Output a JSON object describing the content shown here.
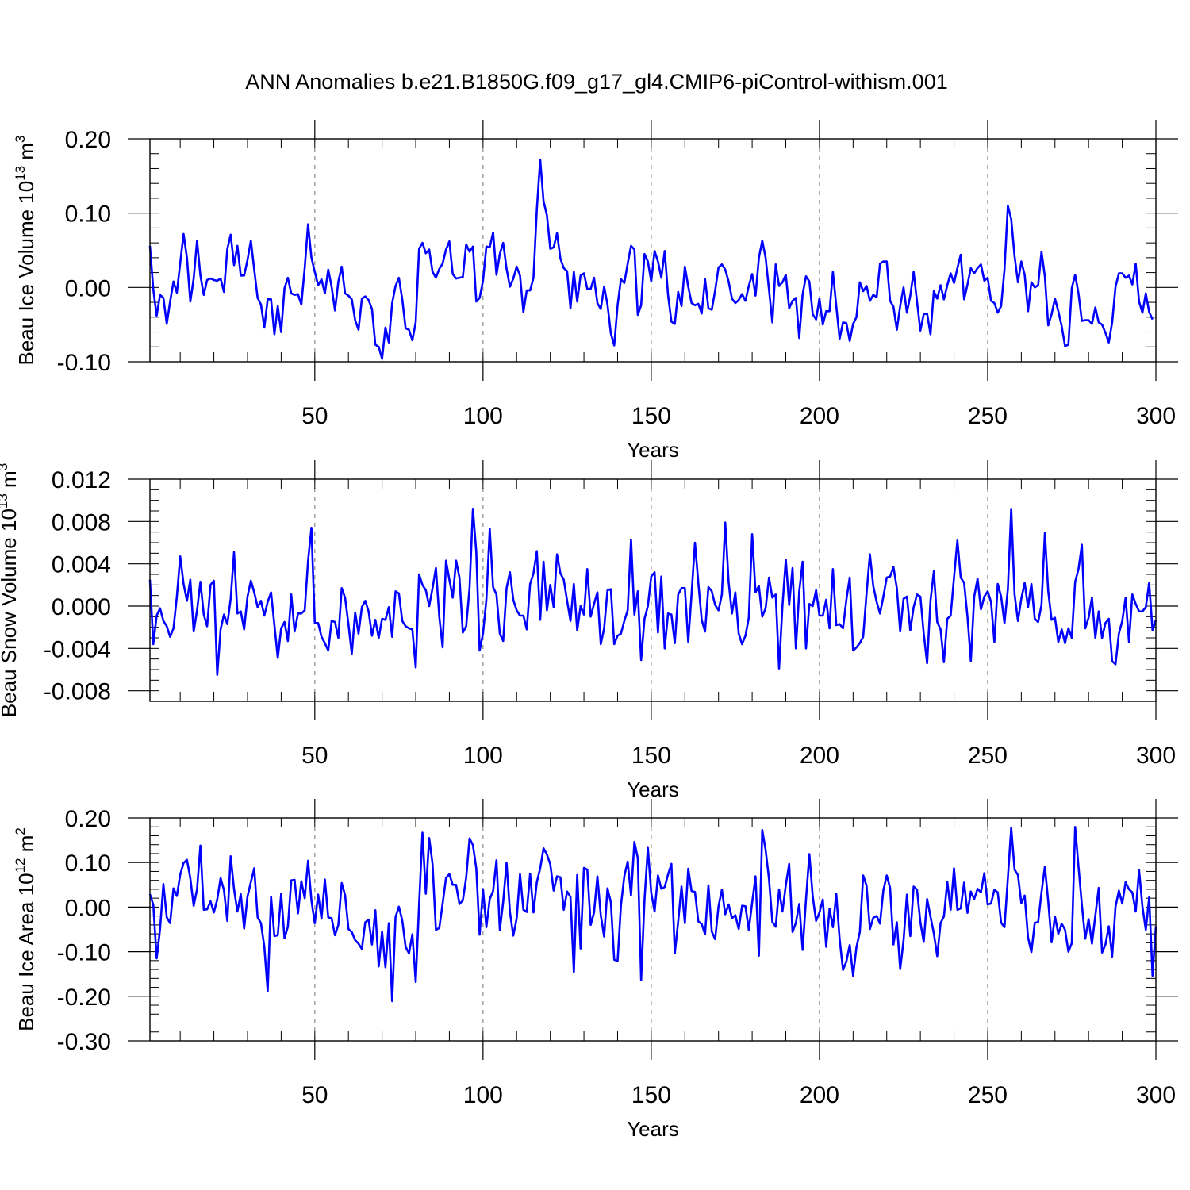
{
  "title": "ANN Anomalies b.e21.B1850G.f09_g17_gl4.CMIP6-piControl-withism.001",
  "chart_data": [
    {
      "type": "line",
      "ylabel": "Beau Ice Volume 10",
      "ylabel_sup": "13",
      "ylabel_unit": " m",
      "ylabel_unit_sup": "3",
      "xlabel": "Years",
      "xlim": [
        1,
        300
      ],
      "ylim": [
        -0.1,
        0.2
      ],
      "y_ticks": [
        -0.1,
        0.0,
        0.1,
        0.2
      ],
      "y_tick_labels": [
        "-0.10",
        "0.00",
        "0.10",
        "0.20"
      ],
      "y_minor_step": 0.02,
      "grid": "dashed vertical lines at x = 50, 100, 150, 200, 250",
      "color": "#0000ff",
      "values": [
        0.056,
        -0.003,
        -0.038,
        -0.01,
        -0.014,
        -0.049,
        -0.019,
        0.008,
        -0.007,
        0.033,
        0.072,
        0.04,
        -0.019,
        0.012,
        0.063,
        0.016,
        -0.01,
        0.01,
        0.012,
        0.01,
        0.009,
        0.012,
        -0.006,
        0.052,
        0.071,
        0.03,
        0.056,
        0.016,
        0.016,
        0.037,
        0.063,
        0.024,
        -0.014,
        -0.023,
        -0.054,
        -0.016,
        -0.016,
        -0.063,
        -0.025,
        -0.06,
        -0.001,
        0.013,
        -0.008,
        -0.01,
        -0.009,
        -0.023,
        0.026,
        0.085,
        0.04,
        0.021,
        0.003,
        0.011,
        -0.008,
        0.024,
        0.001,
        -0.031,
        0.008,
        0.028,
        -0.008,
        -0.011,
        -0.016,
        -0.044,
        -0.057,
        -0.015,
        -0.012,
        -0.017,
        -0.029,
        -0.077,
        -0.08,
        -0.096,
        -0.054,
        -0.074,
        -0.021,
        0.002,
        0.013,
        -0.016,
        -0.055,
        -0.057,
        -0.071,
        -0.047,
        0.052,
        0.06,
        0.046,
        0.051,
        0.021,
        0.013,
        0.025,
        0.032,
        0.051,
        0.062,
        0.018,
        0.012,
        0.013,
        0.014,
        0.058,
        0.048,
        0.055,
        -0.019,
        -0.014,
        0.009,
        0.055,
        0.054,
        0.074,
        0.017,
        0.045,
        0.06,
        0.025,
        0.001,
        0.012,
        0.028,
        0.016,
        -0.033,
        -0.004,
        -0.004,
        0.013,
        0.105,
        0.172,
        0.116,
        0.097,
        0.052,
        0.054,
        0.073,
        0.039,
        0.026,
        0.022,
        -0.028,
        0.021,
        -0.019,
        0.016,
        0.019,
        -0.002,
        -0.002,
        0.013,
        -0.021,
        -0.029,
        0.001,
        -0.023,
        -0.062,
        -0.078,
        -0.024,
        0.011,
        0.006,
        0.032,
        0.056,
        0.051,
        -0.037,
        -0.024,
        0.045,
        0.035,
        0.008,
        0.049,
        0.035,
        0.013,
        0.049,
        -0.01,
        -0.046,
        -0.049,
        -0.006,
        -0.025,
        0.028,
        0.001,
        -0.021,
        -0.024,
        -0.022,
        -0.035,
        0.011,
        -0.028,
        -0.03,
        -0.004,
        0.027,
        0.031,
        0.024,
        0.008,
        -0.015,
        -0.021,
        -0.017,
        -0.009,
        -0.018,
        0.002,
        0.018,
        -0.011,
        0.04,
        0.063,
        0.04,
        -0.003,
        -0.047,
        0.031,
        0.002,
        0.007,
        0.017,
        -0.028,
        -0.018,
        -0.014,
        -0.068,
        -0.009,
        0.015,
        0.008,
        -0.036,
        -0.043,
        -0.015,
        -0.05,
        -0.032,
        -0.032,
        0.021,
        -0.025,
        -0.069,
        -0.047,
        -0.048,
        -0.072,
        -0.049,
        -0.04,
        0.007,
        -0.005,
        0.002,
        -0.018,
        -0.01,
        -0.013,
        0.032,
        0.035,
        0.035,
        -0.018,
        -0.026,
        -0.057,
        -0.025,
        0.0,
        -0.034,
        -0.011,
        0.021,
        -0.019,
        -0.058,
        -0.036,
        -0.035,
        -0.063,
        -0.005,
        -0.015,
        0.003,
        -0.016,
        0.003,
        0.019,
        0.006,
        0.026,
        0.044,
        -0.016,
        0.004,
        0.026,
        0.019,
        0.026,
        0.031,
        0.009,
        0.013,
        -0.018,
        -0.021,
        -0.034,
        -0.025,
        0.024,
        0.11,
        0.092,
        0.042,
        0.007,
        0.035,
        0.017,
        -0.032,
        0.007,
        0.0,
        0.003,
        0.048,
        0.015,
        -0.051,
        -0.036,
        -0.015,
        -0.032,
        -0.052,
        -0.079,
        -0.077,
        -0.001,
        0.017,
        -0.008,
        -0.045,
        -0.044,
        -0.044,
        -0.049,
        -0.027,
        -0.047,
        -0.05,
        -0.061,
        -0.074,
        -0.047,
        0.001,
        0.019,
        0.019,
        0.013,
        0.016,
        0.004,
        0.032,
        -0.019,
        -0.034,
        -0.008,
        -0.033,
        -0.043
      ]
    },
    {
      "type": "line",
      "ylabel": "Beau Snow Volume 10",
      "ylabel_sup": "13",
      "ylabel_unit": " m",
      "ylabel_unit_sup": "3",
      "xlabel": "Years",
      "xlim": [
        1,
        300
      ],
      "ylim": [
        -0.009,
        0.012
      ],
      "y_ticks": [
        -0.008,
        -0.004,
        0.0,
        0.004,
        0.008,
        0.012
      ],
      "y_tick_labels": [
        "-0.008",
        "-0.004",
        "0.000",
        "0.004",
        "0.008",
        "0.012"
      ],
      "y_minor_step": 0.001,
      "grid": "dashed vertical lines at x = 50, 100, 150, 200, 250",
      "color": "#0000ff",
      "values": [
        0.0025,
        -0.0036,
        -0.0009,
        -0.0002,
        -0.0014,
        -0.0019,
        -0.0029,
        -0.0021,
        0.0009,
        0.0047,
        0.0021,
        0.0005,
        0.0025,
        -0.0024,
        -0.0004,
        0.0023,
        -0.0008,
        -0.0019,
        0.002,
        0.0024,
        -0.0065,
        -0.0022,
        -0.0008,
        -0.0017,
        0.0007,
        0.0051,
        -0.0007,
        -0.0005,
        -0.0022,
        0.0009,
        0.0024,
        0.0013,
        -0.0001,
        0.0005,
        -0.0009,
        0.0004,
        0.0013,
        -0.0018,
        -0.0049,
        -0.0021,
        -0.0015,
        -0.0033,
        0.0011,
        -0.0024,
        -0.0007,
        -0.0007,
        -0.0004,
        0.0043,
        0.0074,
        -0.0016,
        -0.0016,
        -0.0029,
        -0.0035,
        -0.0042,
        -0.0014,
        -0.0015,
        -0.003,
        0.0017,
        0.0008,
        -0.0017,
        -0.0045,
        -0.0006,
        -0.0026,
        -0.0001,
        0.0005,
        -0.0005,
        -0.0028,
        -0.0013,
        -0.003,
        -0.0012,
        -0.0013,
        -0.0001,
        -0.0029,
        0.0014,
        0.0012,
        -0.0014,
        -0.0019,
        -0.0021,
        -0.0022,
        -0.0058,
        0.003,
        0.002,
        0.0015,
        0.0,
        0.0017,
        0.0036,
        -0.001,
        -0.0039,
        0.0043,
        0.0025,
        0.0008,
        0.0043,
        0.0027,
        -0.0025,
        -0.0019,
        0.0017,
        0.0092,
        0.0051,
        -0.0042,
        -0.0026,
        0.0006,
        0.0073,
        0.0018,
        0.0011,
        -0.0026,
        -0.0033,
        0.0017,
        0.0032,
        0.0006,
        -0.0004,
        -0.0009,
        -0.0009,
        -0.0022,
        0.0021,
        0.0031,
        0.0052,
        -0.0013,
        0.0042,
        -0.0004,
        0.002,
        -0.0001,
        0.0049,
        0.0031,
        0.0025,
        0.0005,
        -0.0014,
        0.0021,
        -0.0023,
        0.0,
        -0.0008,
        0.0035,
        -0.001,
        0.0002,
        0.0013,
        -0.0036,
        -0.0021,
        0.0015,
        0.0016,
        -0.0036,
        -0.0028,
        -0.0026,
        -0.0014,
        -0.0004,
        0.0063,
        -0.0008,
        0.0014,
        -0.0051,
        -0.0012,
        0.0,
        0.0028,
        0.0032,
        -0.0025,
        0.0028,
        -0.004,
        -0.0007,
        -0.0008,
        -0.0035,
        0.0011,
        0.0017,
        0.0017,
        -0.0034,
        0.0012,
        0.006,
        0.0022,
        -0.0013,
        -0.0024,
        0.0018,
        0.0014,
        0.0001,
        -0.0004,
        0.0011,
        0.0079,
        0.0023,
        -0.0007,
        0.0013,
        -0.0026,
        -0.0036,
        -0.0028,
        -0.0011,
        0.0068,
        0.0013,
        0.0019,
        -0.001,
        -0.0002,
        0.0027,
        0.0008,
        0.0011,
        -0.0059,
        0.0,
        0.0044,
        0.0001,
        0.0036,
        -0.004,
        0.0014,
        0.0042,
        -0.004,
        0.0002,
        0.0,
        0.0015,
        -0.0009,
        -0.0009,
        0.0006,
        -0.0021,
        0.0035,
        -0.0018,
        -0.0017,
        -0.0021,
        0.0006,
        0.0027,
        -0.0042,
        -0.0039,
        -0.0035,
        -0.0029,
        0.0012,
        0.0049,
        0.0019,
        0.0004,
        -0.0007,
        0.0009,
        0.0027,
        0.0028,
        0.0037,
        0.0017,
        -0.0024,
        0.0007,
        0.0009,
        -0.0023,
        -0.0001,
        0.0011,
        0.0009,
        -0.0026,
        -0.0054,
        0.0005,
        0.0033,
        -0.0015,
        -0.0022,
        -0.0053,
        -0.0012,
        -0.0009,
        0.0027,
        0.0062,
        0.0027,
        0.0022,
        -0.001,
        -0.0052,
        0.0009,
        0.0026,
        -0.0003,
        0.0009,
        0.0014,
        0.0004,
        -0.0034,
        0.0021,
        0.0009,
        -0.0016,
        0.0016,
        0.0092,
        0.0011,
        -0.0014,
        0.0007,
        0.0022,
        -0.0001,
        0.0021,
        -0.0012,
        -0.0015,
        0.0001,
        0.0069,
        0.0014,
        -0.0013,
        -0.0011,
        -0.0034,
        -0.0022,
        -0.0035,
        -0.0021,
        -0.003,
        0.0023,
        0.0035,
        0.0058,
        -0.0021,
        -0.0011,
        0.0008,
        -0.003,
        -0.0005,
        -0.003,
        -0.0016,
        -0.0012,
        -0.0052,
        -0.0055,
        -0.0026,
        -0.0014,
        0.0008,
        -0.0034,
        0.0011,
        0.0002,
        -0.0005,
        -0.0005,
        -0.0001,
        0.0022,
        -0.0023,
        -0.0013
      ]
    },
    {
      "type": "line",
      "ylabel": "Beau Ice Area 10",
      "ylabel_sup": "12",
      "ylabel_unit": " m",
      "ylabel_unit_sup": "2",
      "xlabel": "Years",
      "xlim": [
        1,
        300
      ],
      "ylim": [
        -0.3,
        0.2
      ],
      "y_ticks": [
        -0.3,
        -0.2,
        -0.1,
        0.0,
        0.1,
        0.2
      ],
      "y_tick_labels": [
        "-0.30",
        "-0.20",
        "-0.10",
        "0.00",
        "0.10",
        "0.20"
      ],
      "y_minor_step": 0.02,
      "grid": "dashed vertical lines at x = 50, 100, 150, 200, 250",
      "color": "#0000ff",
      "values": [
        0.029,
        0.005,
        -0.115,
        -0.05,
        0.052,
        -0.023,
        -0.036,
        0.042,
        0.025,
        0.073,
        0.099,
        0.106,
        0.065,
        0.003,
        0.04,
        0.138,
        -0.006,
        -0.005,
        0.013,
        -0.012,
        0.017,
        0.065,
        0.038,
        -0.031,
        0.114,
        0.04,
        -0.01,
        0.029,
        -0.048,
        0.024,
        0.056,
        0.087,
        -0.023,
        -0.036,
        -0.089,
        -0.188,
        0.023,
        -0.065,
        -0.063,
        0.03,
        -0.07,
        -0.044,
        0.06,
        0.061,
        -0.014,
        0.058,
        0.02,
        0.104,
        0.015,
        -0.036,
        0.028,
        -0.026,
        0.062,
        -0.023,
        -0.025,
        -0.063,
        -0.04,
        0.054,
        0.027,
        -0.049,
        -0.056,
        -0.074,
        -0.082,
        -0.094,
        -0.034,
        -0.028,
        -0.084,
        -0.007,
        -0.133,
        -0.055,
        -0.135,
        -0.036,
        -0.211,
        -0.022,
        0.001,
        -0.03,
        -0.089,
        -0.104,
        -0.061,
        -0.168,
        0.005,
        0.167,
        0.03,
        0.155,
        0.097,
        -0.051,
        -0.047,
        0.008,
        0.065,
        0.074,
        0.05,
        0.05,
        0.007,
        0.015,
        0.066,
        0.154,
        0.139,
        0.087,
        -0.062,
        0.04,
        -0.045,
        0.018,
        0.036,
        0.105,
        -0.051,
        0.012,
        0.1,
        -0.011,
        -0.064,
        -0.026,
        0.074,
        -0.006,
        -0.011,
        0.075,
        -0.012,
        0.056,
        0.087,
        0.132,
        0.118,
        0.096,
        0.037,
        0.069,
        0.067,
        -0.006,
        0.035,
        0.023,
        -0.146,
        0.072,
        -0.093,
        0.088,
        0.084,
        -0.04,
        -0.012,
        0.069,
        -0.018,
        -0.066,
        0.042,
        0.011,
        -0.118,
        -0.121,
        0.004,
        0.069,
        0.102,
        0.026,
        0.146,
        0.11,
        -0.164,
        0.016,
        0.133,
        0.032,
        -0.01,
        0.071,
        0.041,
        0.045,
        0.073,
        0.097,
        -0.104,
        -0.033,
        0.046,
        -0.036,
        0.086,
        0.036,
        0.034,
        -0.032,
        -0.038,
        -0.061,
        0.049,
        -0.055,
        -0.072,
        0.002,
        0.039,
        -0.016,
        0.006,
        -0.025,
        -0.018,
        -0.049,
        0.003,
        0.002,
        -0.051,
        0.01,
        0.069,
        -0.109,
        0.173,
        0.128,
        0.063,
        -0.033,
        -0.044,
        0.039,
        -0.01,
        0.049,
        0.097,
        -0.056,
        -0.035,
        0.007,
        -0.096,
        0.017,
        0.119,
        0.024,
        -0.031,
        -0.012,
        0.017,
        -0.089,
        -0.004,
        -0.045,
        0.03,
        -0.072,
        -0.141,
        -0.122,
        -0.085,
        -0.154,
        -0.09,
        -0.056,
        0.071,
        0.048,
        -0.049,
        -0.024,
        -0.02,
        -0.037,
        0.038,
        0.071,
        0.043,
        -0.084,
        -0.034,
        -0.139,
        -0.075,
        0.028,
        -0.065,
        0.046,
        0.039,
        -0.034,
        -0.078,
        0.018,
        -0.021,
        -0.059,
        -0.11,
        -0.036,
        -0.021,
        0.057,
        -0.006,
        0.087,
        -0.006,
        -0.003,
        0.055,
        -0.013,
        0.035,
        0.018,
        0.041,
        0.033,
        0.076,
        0.006,
        0.008,
        0.039,
        0.033,
        -0.035,
        -0.045,
        0.065,
        0.178,
        0.084,
        0.072,
        0.009,
        0.026,
        -0.068,
        -0.101,
        -0.035,
        -0.034,
        0.033,
        0.091,
        0.013,
        -0.079,
        -0.021,
        -0.06,
        -0.037,
        -0.051,
        -0.1,
        -0.081,
        0.18,
        0.091,
        0.005,
        -0.071,
        -0.027,
        -0.082,
        -0.019,
        0.043,
        -0.102,
        -0.084,
        -0.043,
        -0.111,
        0.001,
        0.037,
        0.008,
        0.056,
        0.04,
        0.033,
        -0.01,
        0.083,
        0.001,
        -0.051,
        0.022,
        -0.154,
        -0.043
      ]
    }
  ],
  "x_ticks": [
    50,
    100,
    150,
    200,
    250,
    300
  ],
  "x_tick_labels": [
    "50",
    "100",
    "150",
    "200",
    "250",
    "300"
  ]
}
